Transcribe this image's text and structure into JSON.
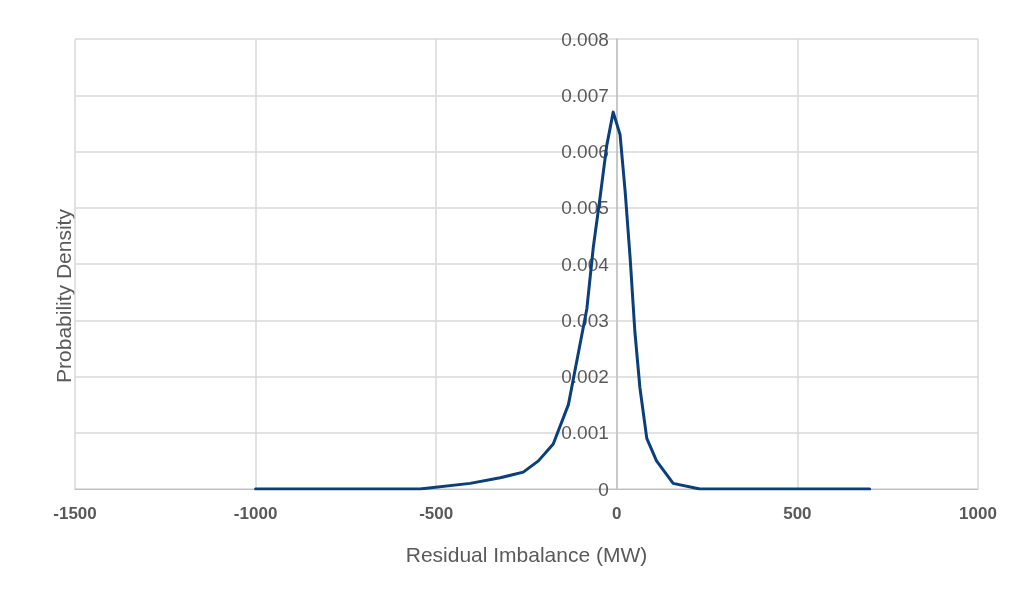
{
  "chart_data": {
    "type": "line",
    "xlabel": "Residual Imbalance (MW)",
    "ylabel": "Probability Density",
    "x": [
      -1000,
      -800,
      -545,
      -406,
      -323,
      -259,
      -217,
      -176,
      -134,
      -107,
      -83,
      -65,
      -46,
      -28,
      -10,
      9,
      23,
      37,
      50,
      64,
      83,
      110,
      156,
      230,
      400,
      700
    ],
    "series": [
      {
        "color": "#0b3f7c",
        "values": [
          0,
          0,
          0,
          0.0001,
          0.0002,
          0.0003,
          0.0005,
          0.0008,
          0.0015,
          0.0024,
          0.0032,
          0.0043,
          0.0052,
          0.0061,
          0.0067,
          0.0063,
          0.0053,
          0.0041,
          0.0028,
          0.0018,
          0.0009,
          0.0005,
          0.0001,
          0,
          0,
          0
        ]
      }
    ],
    "xlim": [
      -1500,
      1000
    ],
    "xticks": [
      -1500,
      -1000,
      -500,
      0,
      500,
      1000
    ],
    "ylim": [
      0,
      0.008
    ],
    "yticks": [
      0,
      0.001,
      0.002,
      0.003,
      0.004,
      0.005,
      0.006,
      0.007,
      0.008
    ],
    "grid": true,
    "marker": "none",
    "line_style": "solid"
  }
}
